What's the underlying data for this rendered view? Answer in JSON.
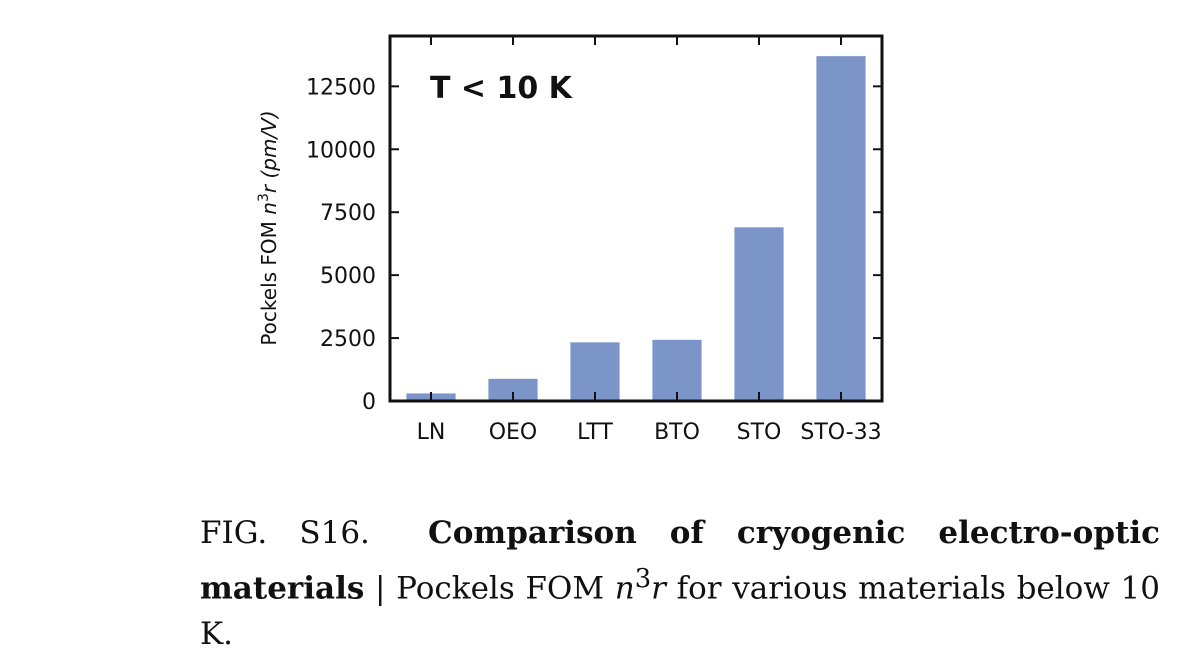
{
  "chart_data": {
    "type": "bar",
    "categories": [
      "LN",
      "OEO",
      "LTT",
      "BTO",
      "STO",
      "STO-33"
    ],
    "values": [
      300,
      880,
      2330,
      2430,
      6900,
      13700
    ],
    "ylabel_prefix": "Pockels FOM ",
    "ylabel_math": "n",
    "ylabel_sup": "3",
    "ylabel_math2": "r",
    "ylabel_suffix": " (pm/V)",
    "xlabel": "",
    "ylim": [
      0,
      14500
    ],
    "yticks": [
      0,
      2500,
      5000,
      7500,
      10000,
      12500
    ],
    "annotation": "T < 10 K",
    "grid": false,
    "bar_color": "#7b95c8"
  },
  "caption": {
    "label": "FIG. S16.",
    "bold_title": "Comparison of cryogenic electro-optic materials",
    "separator": "|",
    "text_before": "Pockels FOM ",
    "math_n": "n",
    "math_sup": "3",
    "math_r": "r",
    "text_after": " for various materials below 10 K."
  }
}
